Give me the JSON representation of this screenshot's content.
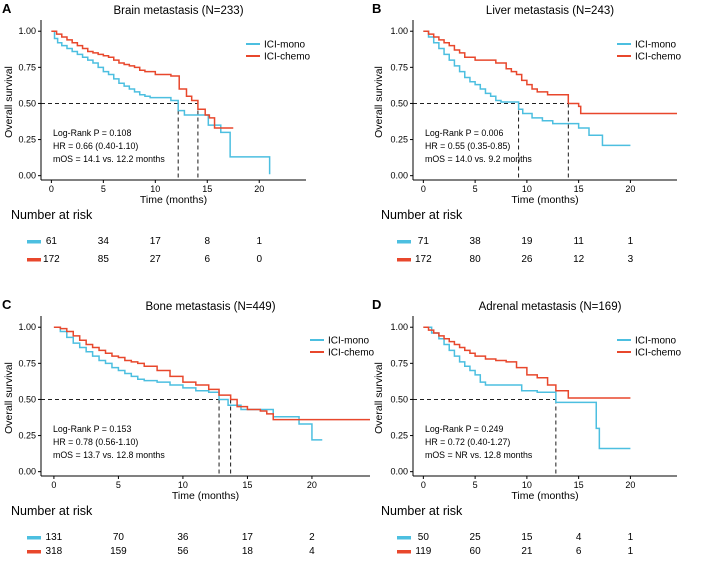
{
  "colors": {
    "ici_mono": "#4cbfe0",
    "ici_chemo": "#e8472c",
    "axis": "#000000",
    "ref_line": "#000000"
  },
  "chart_data": [
    {
      "type": "line",
      "subtype": "kaplan-meier",
      "letter": "A",
      "title": "Brain metastasis (N=233)",
      "xlabel": "Time (months)",
      "ylabel": "Overall survival",
      "xlim": [
        -1,
        24.5
      ],
      "ylim": [
        -0.03,
        1.05
      ],
      "xticks": [
        0,
        5,
        10,
        15,
        20
      ],
      "yticks": [
        0.0,
        0.25,
        0.5,
        0.75,
        1.0
      ],
      "ytick_labels": [
        "0.00",
        "0.25",
        "0.50",
        "0.75",
        "1.00"
      ],
      "median_line_y": 0.5,
      "medians": [
        12.2,
        14.1
      ],
      "legend": [
        "ICI-mono",
        "ICI-chemo"
      ],
      "annotations": [
        "Log-Rank P = 0.108",
        "HR = 0.66 (0.40-1.10)",
        "mOS = 14.1 vs. 12.2 months"
      ],
      "risk_table": {
        "title": "Number at risk",
        "times": [
          0,
          5,
          10,
          15,
          20
        ],
        "ici_mono": [
          61,
          34,
          17,
          8,
          1
        ],
        "ici_chemo": [
          172,
          85,
          27,
          6,
          0
        ]
      },
      "series": [
        {
          "name": "ICI-mono",
          "color_key": "ici_mono",
          "x": [
            0,
            0.3,
            0.6,
            1,
            1.5,
            2,
            2.5,
            3,
            3.5,
            4,
            4.5,
            5,
            5.5,
            6,
            6.5,
            7,
            7.5,
            8,
            8.5,
            9,
            9.5,
            10.5,
            11.5,
            12.2,
            12.8,
            14.1,
            15.1,
            16.3,
            17.2,
            18,
            21
          ],
          "y": [
            1.0,
            0.95,
            0.92,
            0.9,
            0.88,
            0.86,
            0.84,
            0.82,
            0.8,
            0.78,
            0.75,
            0.72,
            0.7,
            0.67,
            0.64,
            0.62,
            0.6,
            0.58,
            0.56,
            0.55,
            0.54,
            0.54,
            0.52,
            0.45,
            0.42,
            0.42,
            0.35,
            0.3,
            0.13,
            0.13,
            0.01
          ]
        },
        {
          "name": "ICI-chemo",
          "color_key": "ici_chemo",
          "x": [
            0,
            0.5,
            1,
            1.5,
            2,
            2.5,
            3,
            3.5,
            4,
            4.5,
            5,
            5.5,
            6,
            6.5,
            7,
            7.5,
            8,
            8.5,
            9,
            10,
            11,
            11.5,
            12.3,
            13,
            13.5,
            14.1,
            14.8,
            15.2,
            15.7,
            17.5
          ],
          "y": [
            1.0,
            0.98,
            0.96,
            0.94,
            0.92,
            0.9,
            0.88,
            0.86,
            0.85,
            0.84,
            0.83,
            0.82,
            0.8,
            0.78,
            0.77,
            0.76,
            0.75,
            0.73,
            0.72,
            0.7,
            0.7,
            0.69,
            0.6,
            0.55,
            0.52,
            0.46,
            0.42,
            0.4,
            0.33,
            0.33
          ]
        }
      ]
    },
    {
      "type": "line",
      "subtype": "kaplan-meier",
      "letter": "B",
      "title": "Liver metastasis (N=243)",
      "xlabel": "Time (months)",
      "ylabel": "Overall survival",
      "xlim": [
        -1,
        24.5
      ],
      "ylim": [
        -0.03,
        1.05
      ],
      "xticks": [
        0,
        5,
        10,
        15,
        20
      ],
      "yticks": [
        0.0,
        0.25,
        0.5,
        0.75,
        1.0
      ],
      "ytick_labels": [
        "0.00",
        "0.25",
        "0.50",
        "0.75",
        "1.00"
      ],
      "median_line_y": 0.5,
      "medians": [
        9.2,
        14.0
      ],
      "legend": [
        "ICI-mono",
        "ICI-chemo"
      ],
      "annotations": [
        "Log-Rank P = 0.006",
        "HR = 0.55 (0.35-0.85)",
        "mOS = 14.0 vs. 9.2 months"
      ],
      "risk_table": {
        "title": "Number at risk",
        "times": [
          0,
          5,
          10,
          15,
          20
        ],
        "ici_mono": [
          71,
          38,
          19,
          11,
          1
        ],
        "ici_chemo": [
          172,
          80,
          26,
          12,
          3
        ]
      },
      "series": [
        {
          "name": "ICI-mono",
          "color_key": "ici_mono",
          "x": [
            0,
            0.5,
            1,
            1.5,
            2,
            2.5,
            3,
            3.5,
            4,
            4.5,
            5,
            5.5,
            6,
            6.5,
            7,
            7.5,
            8,
            9.2,
            9.6,
            10.5,
            11.5,
            12.5,
            14,
            15,
            16,
            17.3,
            20
          ],
          "y": [
            1.0,
            0.96,
            0.92,
            0.88,
            0.84,
            0.8,
            0.76,
            0.72,
            0.68,
            0.65,
            0.63,
            0.6,
            0.57,
            0.55,
            0.52,
            0.51,
            0.51,
            0.46,
            0.43,
            0.4,
            0.38,
            0.36,
            0.36,
            0.33,
            0.28,
            0.21,
            0.21
          ]
        },
        {
          "name": "ICI-chemo",
          "color_key": "ici_chemo",
          "x": [
            0,
            0.5,
            1,
            1.5,
            2,
            2.5,
            3,
            3.5,
            4,
            5,
            6,
            7,
            8,
            8.5,
            9,
            9.5,
            10,
            10.5,
            11,
            12,
            13,
            14,
            15,
            15.2,
            24.5
          ],
          "y": [
            1.0,
            0.98,
            0.96,
            0.94,
            0.92,
            0.9,
            0.87,
            0.85,
            0.82,
            0.8,
            0.8,
            0.78,
            0.74,
            0.72,
            0.7,
            0.66,
            0.63,
            0.6,
            0.58,
            0.56,
            0.56,
            0.5,
            0.48,
            0.43,
            0.43
          ]
        }
      ]
    },
    {
      "type": "line",
      "subtype": "kaplan-meier",
      "letter": "C",
      "title": "Bone metastasis (N=449)",
      "xlabel": "Time (months)",
      "ylabel": "Overall survival",
      "xlim": [
        -1,
        24.5
      ],
      "ylim": [
        -0.03,
        1.05
      ],
      "xticks": [
        0,
        5,
        10,
        15,
        20
      ],
      "yticks": [
        0.0,
        0.25,
        0.5,
        0.75,
        1.0
      ],
      "ytick_labels": [
        "0.00",
        "0.25",
        "0.50",
        "0.75",
        "1.00"
      ],
      "median_line_y": 0.5,
      "medians": [
        12.8,
        13.7
      ],
      "legend": [
        "ICI-mono",
        "ICI-chemo"
      ],
      "annotations": [
        "Log-Rank P = 0.153",
        "HR = 0.78 (0.56-1.10)",
        "mOS = 13.7 vs. 12.8 months"
      ],
      "risk_table": {
        "title": "Number at risk",
        "times": [
          0,
          5,
          10,
          15,
          20
        ],
        "ici_mono": [
          131,
          70,
          36,
          17,
          2
        ],
        "ici_chemo": [
          318,
          159,
          56,
          18,
          4
        ]
      },
      "series": [
        {
          "name": "ICI-mono",
          "color_key": "ici_mono",
          "x": [
            0,
            0.5,
            1,
            1.5,
            2,
            2.5,
            3,
            3.5,
            4,
            4.5,
            5,
            5.5,
            6,
            6.5,
            7,
            8,
            9,
            10,
            11,
            12,
            12.8,
            13.5,
            14.5,
            16,
            17,
            19,
            20,
            20.8
          ],
          "y": [
            1.0,
            0.97,
            0.93,
            0.89,
            0.86,
            0.83,
            0.8,
            0.77,
            0.75,
            0.72,
            0.7,
            0.68,
            0.66,
            0.64,
            0.63,
            0.62,
            0.6,
            0.58,
            0.56,
            0.55,
            0.5,
            0.46,
            0.43,
            0.43,
            0.38,
            0.33,
            0.22,
            0.22
          ]
        },
        {
          "name": "ICI-chemo",
          "color_key": "ici_chemo",
          "x": [
            0,
            0.5,
            1,
            1.5,
            2,
            2.5,
            3,
            3.5,
            4,
            4.5,
            5,
            5.5,
            6,
            6.5,
            7,
            8,
            9,
            10,
            11,
            12,
            12.8,
            13.7,
            14.2,
            15,
            16,
            16.5,
            17,
            24.5
          ],
          "y": [
            1.0,
            0.99,
            0.97,
            0.94,
            0.91,
            0.88,
            0.86,
            0.84,
            0.82,
            0.8,
            0.79,
            0.77,
            0.76,
            0.75,
            0.73,
            0.7,
            0.66,
            0.62,
            0.6,
            0.57,
            0.53,
            0.5,
            0.45,
            0.43,
            0.42,
            0.4,
            0.36,
            0.36
          ]
        }
      ]
    },
    {
      "type": "line",
      "subtype": "kaplan-meier",
      "letter": "D",
      "title": "Adrenal metastasis (N=169)",
      "xlabel": "Time (months)",
      "ylabel": "Overall survival",
      "xlim": [
        -1,
        24.5
      ],
      "ylim": [
        -0.03,
        1.05
      ],
      "xticks": [
        0,
        5,
        10,
        15,
        20
      ],
      "yticks": [
        0.0,
        0.25,
        0.5,
        0.75,
        1.0
      ],
      "ytick_labels": [
        "0.00",
        "0.25",
        "0.50",
        "0.75",
        "1.00"
      ],
      "median_line_y": 0.5,
      "medians": [
        12.8
      ],
      "legend": [
        "ICI-mono",
        "ICI-chemo"
      ],
      "annotations": [
        "Log-Rank P = 0.249",
        "HR = 0.72 (0.40-1.27)",
        "mOS = NR vs. 12.8 months"
      ],
      "risk_table": {
        "title": "Number at risk",
        "times": [
          0,
          5,
          10,
          15,
          20
        ],
        "ici_mono": [
          50,
          25,
          15,
          4,
          1
        ],
        "ici_chemo": [
          119,
          60,
          21,
          6,
          1
        ]
      },
      "series": [
        {
          "name": "ICI-mono",
          "color_key": "ici_mono",
          "x": [
            0,
            0.8,
            1.5,
            2,
            2.5,
            3,
            3.5,
            4,
            4.5,
            5,
            5.5,
            6,
            8,
            9.5,
            10,
            11,
            12.8,
            13.5,
            16.7,
            17,
            20
          ],
          "y": [
            1.0,
            0.96,
            0.92,
            0.88,
            0.84,
            0.8,
            0.76,
            0.73,
            0.7,
            0.67,
            0.62,
            0.6,
            0.6,
            0.56,
            0.56,
            0.55,
            0.48,
            0.48,
            0.3,
            0.16,
            0.16
          ]
        },
        {
          "name": "ICI-chemo",
          "color_key": "ici_chemo",
          "x": [
            0,
            0.5,
            1,
            1.5,
            2,
            2.5,
            3,
            3.5,
            4,
            4.5,
            5,
            6,
            7,
            8,
            9,
            10,
            11,
            12,
            12.8,
            14,
            20
          ],
          "y": [
            1.0,
            0.98,
            0.96,
            0.94,
            0.92,
            0.9,
            0.88,
            0.86,
            0.84,
            0.82,
            0.8,
            0.78,
            0.77,
            0.76,
            0.72,
            0.67,
            0.65,
            0.6,
            0.56,
            0.51,
            0.51
          ]
        }
      ]
    }
  ]
}
